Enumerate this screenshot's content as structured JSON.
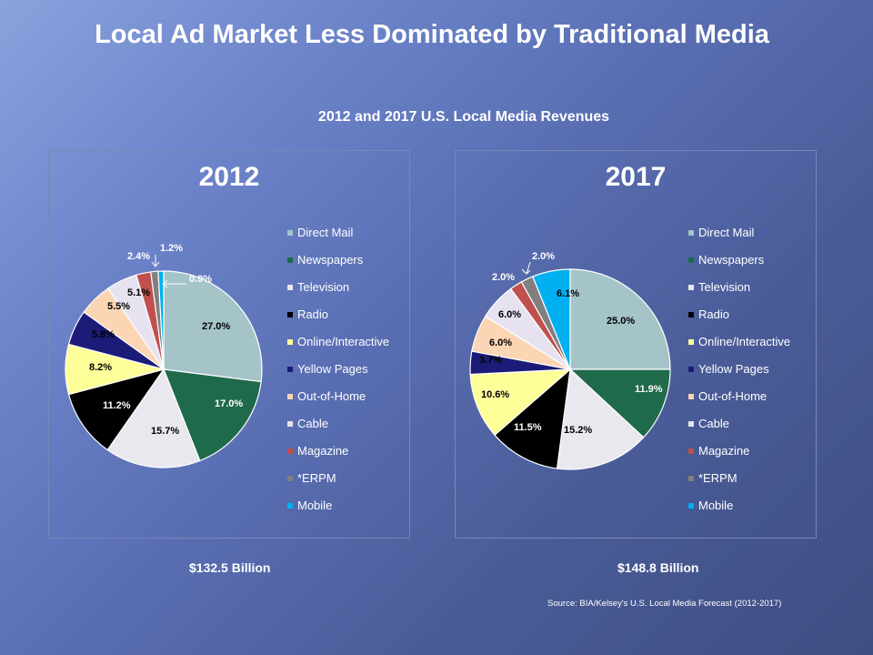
{
  "title": "Local Ad Market Less Dominated by Traditional Media",
  "subtitle": "2012 and 2017 U.S. Local Media Revenues",
  "source": "Source:  BIA/Kelsey's U.S. Local Media Forecast (2012-2017)",
  "colors": {
    "Direct Mail": "#a4c4c8",
    "Newspapers": "#1f6a4a",
    "Television": "#e8e8ee",
    "Radio": "#000000",
    "Online/Interactive": "#ffff99",
    "Yellow Pages": "#1c1c78",
    "Out-of-Home": "#fcd5b5",
    "Cable": "#e6e2f0",
    "Magazine": "#c0504d",
    "*ERPM": "#808080",
    "Mobile": "#00b0f0"
  },
  "chart_data": [
    {
      "type": "pie",
      "title": "2012",
      "total": "$132.5 Billion",
      "legend": "right",
      "categories": [
        "Direct Mail",
        "Newspapers",
        "Television",
        "Radio",
        "Online/Interactive",
        "Yellow Pages",
        "Out-of-Home",
        "Cable",
        "Magazine",
        "*ERPM",
        "Mobile"
      ],
      "values": [
        27.0,
        17.0,
        15.7,
        11.2,
        8.2,
        5.8,
        5.5,
        5.1,
        2.4,
        1.2,
        0.9
      ],
      "labels": [
        "27.0%",
        "17.0%",
        "15.7%",
        "11.2%",
        "8.2%",
        "5.8%",
        "5.5%",
        "5.1%",
        "2.4%",
        "1.2%",
        "0.9%"
      ]
    },
    {
      "type": "pie",
      "title": "2017",
      "total": "$148.8 Billion",
      "legend": "right",
      "categories": [
        "Direct Mail",
        "Newspapers",
        "Television",
        "Radio",
        "Online/Interactive",
        "Yellow Pages",
        "Out-of-Home",
        "Cable",
        "Magazine",
        "*ERPM",
        "Mobile"
      ],
      "values": [
        25.0,
        11.9,
        15.2,
        11.5,
        10.6,
        3.7,
        6.0,
        6.0,
        2.0,
        2.0,
        6.1
      ],
      "labels": [
        "25.0%",
        "11.9%",
        "15.2%",
        "11.5%",
        "10.6%",
        "3.7%",
        "6.0%",
        "6.0%",
        "2.0%",
        "2.0%",
        "6.1%"
      ]
    }
  ]
}
